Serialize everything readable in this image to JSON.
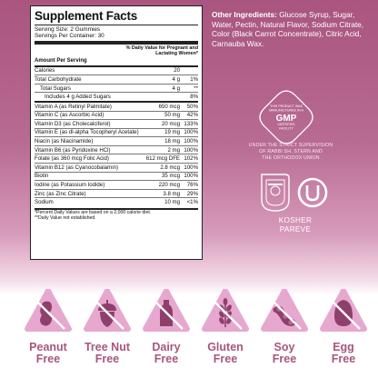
{
  "facts": {
    "title": "Supplement Facts",
    "serving_size": "Serving Size: 2 Gummies",
    "servings_per_container": "Servings Per Container: 30",
    "dv_header": "% Daily Value for Pregnant and Lactating Women*",
    "amount_header": "Amount Per Serving",
    "rows": [
      {
        "name": "Calories",
        "amount": "20",
        "dv": ""
      },
      {
        "name": "Total Carbohydrate",
        "amount": "4 g",
        "dv": "1%"
      },
      {
        "name": "Total Sugars",
        "amount": "4 g",
        "dv": "**"
      },
      {
        "name": "Includes 4 g Added Sugars",
        "amount": "",
        "dv": "8%"
      },
      {
        "name": "Vitamin A (as Retinyl Palmitate)",
        "amount": "650 mcg",
        "dv": "50%"
      },
      {
        "name": "Vitamin C (as Ascorbic Acid)",
        "amount": "50 mg",
        "dv": "42%"
      },
      {
        "name": "Vitamin D3 (as Cholecalciferol)",
        "amount": "20 mcg",
        "dv": "133%"
      },
      {
        "name": "Vitamin E (as dl-alpha Tocopheryl Acetate)",
        "amount": "19 mg",
        "dv": "100%"
      },
      {
        "name": "Niacin (as Niacinamide)",
        "amount": "18 mg",
        "dv": "100%"
      },
      {
        "name": "Vitamin B6 (as Pyridoxine HCl)",
        "amount": "2 mg",
        "dv": "100%"
      },
      {
        "name": "Folate (as 360 mcg Folic Acid)",
        "amount": "612 mcg DFE",
        "dv": "102%"
      },
      {
        "name": "Vitamin B12 (as Cyanocobalamin)",
        "amount": "2.8 mcg",
        "dv": "100%"
      },
      {
        "name": "Biotin",
        "amount": "35 mcg",
        "dv": "100%"
      },
      {
        "name": "Iodine (as Potassium Iodide)",
        "amount": "220 mcg",
        "dv": "76%"
      },
      {
        "name": "Zinc (as Zinc Citrate)",
        "amount": "3.8 mg",
        "dv": "29%"
      },
      {
        "name": "Sodium",
        "amount": "10 mg",
        "dv": "<1%"
      }
    ],
    "footnote1": "*Percent Daily Values are based on a 2,000 calorie diet.",
    "footnote2": "**Daily Value not established."
  },
  "ingredients": {
    "label": "Other Ingredients:",
    "text": "Glucose Syrup, Sugar, Water, Pectin, Natural Flavor, Sodium Citrate, Color (Black Carrot Concentrate), Citric Acid, Carnauba Wax."
  },
  "gmp": {
    "line1": "THIS PRODUCT WAS",
    "line2": "MANUFACTURED IN A",
    "big": "GMP",
    "line3": "CERTIFIED",
    "line4": "FACILITY"
  },
  "supervision": {
    "line1": "UNDER THE STRICT SUPERVISION",
    "line2": "OF RABBI SH. STERN AND",
    "line3": "THE ORTHODOX UNION"
  },
  "kosher": {
    "line1": "KOSHER",
    "line2": "PAREVE"
  },
  "free_from": [
    {
      "line1": "Peanut",
      "line2": "Free",
      "icon": "peanut-icon"
    },
    {
      "line1": "Tree Nut",
      "line2": "Free",
      "icon": "acorn-icon"
    },
    {
      "line1": "Dairy",
      "line2": "Free",
      "icon": "milk-bottle-icon"
    },
    {
      "line1": "Gluten",
      "line2": "Free",
      "icon": "wheat-icon"
    },
    {
      "line1": "Soy",
      "line2": "Free",
      "icon": "soybean-icon"
    },
    {
      "line1": "Egg",
      "line2": "Free",
      "icon": "egg-icon"
    }
  ],
  "colors": {
    "brand": "#a9557f",
    "icon_fill": "#e7a8cf",
    "icon_dark": "#8f3f6b"
  }
}
